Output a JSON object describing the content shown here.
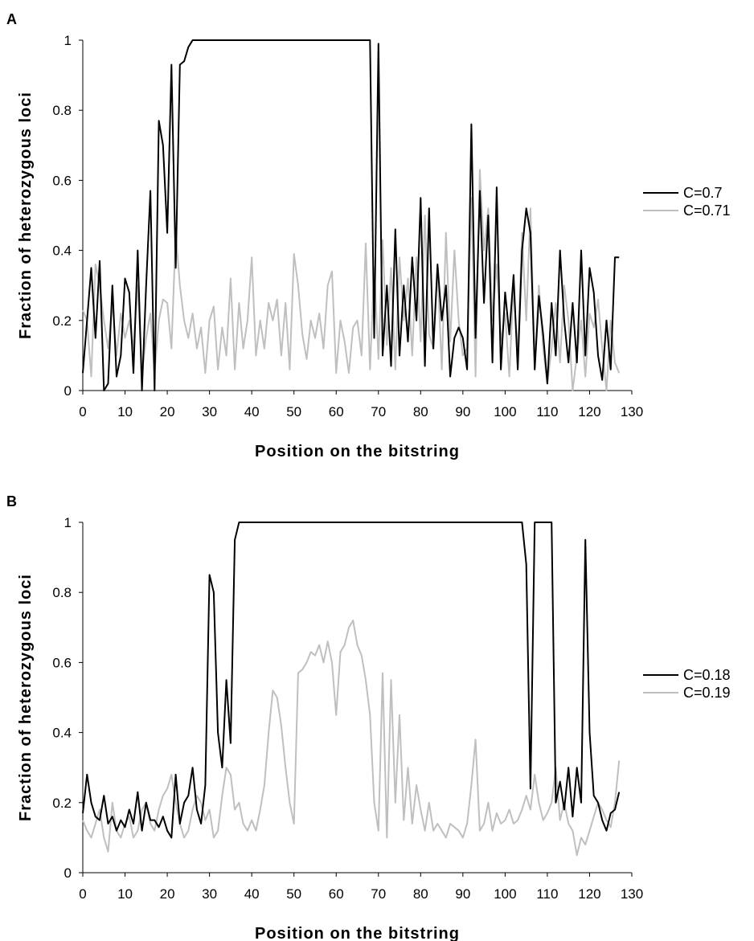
{
  "chart_data": [
    {
      "type": "line",
      "panel_label": "A",
      "title": "",
      "xlabel": "Position on the bitstring",
      "ylabel": "Fraction of heterozygous loci",
      "xlim": [
        0,
        130
      ],
      "ylim": [
        0,
        1
      ],
      "xticks": [
        "0",
        "10",
        "20",
        "30",
        "40",
        "50",
        "60",
        "70",
        "80",
        "90",
        "100",
        "110",
        "120",
        "130"
      ],
      "yticks": [
        "0",
        "0.2",
        "0.4",
        "0.6",
        "0.8",
        "1"
      ],
      "legend_position": "right",
      "grid": false,
      "series": [
        {
          "name": "C=0.7",
          "color": "#000000",
          "x": [
            0,
            1,
            2,
            3,
            4,
            5,
            6,
            7,
            8,
            9,
            10,
            11,
            12,
            13,
            14,
            15,
            16,
            17,
            18,
            19,
            20,
            21,
            22,
            23,
            24,
            25,
            26,
            27,
            30,
            35,
            40,
            45,
            50,
            55,
            60,
            65,
            68,
            69,
            70,
            71,
            72,
            73,
            74,
            75,
            76,
            77,
            78,
            79,
            80,
            81,
            82,
            83,
            84,
            85,
            86,
            87,
            88,
            89,
            90,
            91,
            92,
            93,
            94,
            95,
            96,
            97,
            98,
            99,
            100,
            101,
            102,
            103,
            104,
            105,
            106,
            107,
            108,
            109,
            110,
            111,
            112,
            113,
            114,
            115,
            116,
            117,
            118,
            119,
            120,
            121,
            122,
            123,
            124,
            125,
            126,
            127
          ],
          "y": [
            0.05,
            0.2,
            0.35,
            0.15,
            0.37,
            0.0,
            0.02,
            0.3,
            0.04,
            0.1,
            0.32,
            0.28,
            0.05,
            0.4,
            0.0,
            0.3,
            0.57,
            0.0,
            0.77,
            0.7,
            0.45,
            0.93,
            0.35,
            0.93,
            0.94,
            0.98,
            1.0,
            1.0,
            1.0,
            1.0,
            1.0,
            1.0,
            1.0,
            1.0,
            1.0,
            1.0,
            1.0,
            0.15,
            0.99,
            0.1,
            0.3,
            0.07,
            0.46,
            0.1,
            0.3,
            0.14,
            0.38,
            0.2,
            0.55,
            0.07,
            0.52,
            0.12,
            0.36,
            0.2,
            0.3,
            0.04,
            0.15,
            0.18,
            0.15,
            0.06,
            0.76,
            0.15,
            0.57,
            0.25,
            0.5,
            0.08,
            0.58,
            0.06,
            0.28,
            0.16,
            0.33,
            0.06,
            0.4,
            0.52,
            0.45,
            0.06,
            0.27,
            0.16,
            0.02,
            0.25,
            0.1,
            0.4,
            0.2,
            0.08,
            0.25,
            0.08,
            0.4,
            0.1,
            0.35,
            0.28,
            0.1,
            0.03,
            0.2,
            0.06,
            0.38,
            0.38
          ]
        },
        {
          "name": "C=0.71",
          "color": "#bfbfbf",
          "x": [
            0,
            1,
            2,
            3,
            4,
            5,
            6,
            7,
            8,
            9,
            10,
            11,
            12,
            13,
            14,
            15,
            16,
            17,
            18,
            19,
            20,
            21,
            22,
            23,
            24,
            25,
            26,
            27,
            28,
            29,
            30,
            31,
            32,
            33,
            34,
            35,
            36,
            37,
            38,
            39,
            40,
            41,
            42,
            43,
            44,
            45,
            46,
            47,
            48,
            49,
            50,
            51,
            52,
            53,
            54,
            55,
            56,
            57,
            58,
            59,
            60,
            61,
            62,
            63,
            64,
            65,
            66,
            67,
            68,
            69,
            70,
            71,
            72,
            73,
            74,
            75,
            76,
            77,
            78,
            79,
            80,
            81,
            82,
            83,
            84,
            85,
            86,
            87,
            88,
            89,
            90,
            91,
            92,
            93,
            94,
            95,
            96,
            97,
            98,
            99,
            100,
            101,
            102,
            103,
            104,
            105,
            106,
            107,
            108,
            109,
            110,
            111,
            112,
            113,
            114,
            115,
            116,
            117,
            118,
            119,
            120,
            121,
            122,
            123,
            124,
            125,
            126,
            127
          ],
          "y": [
            0.23,
            0.2,
            0.04,
            0.36,
            0.3,
            0.2,
            0.12,
            0.25,
            0.1,
            0.22,
            0.15,
            0.2,
            0.12,
            0.3,
            0.05,
            0.15,
            0.22,
            0.05,
            0.2,
            0.26,
            0.25,
            0.12,
            0.45,
            0.3,
            0.2,
            0.15,
            0.22,
            0.12,
            0.18,
            0.05,
            0.2,
            0.24,
            0.06,
            0.18,
            0.1,
            0.32,
            0.06,
            0.25,
            0.12,
            0.2,
            0.38,
            0.1,
            0.2,
            0.12,
            0.25,
            0.2,
            0.26,
            0.1,
            0.25,
            0.06,
            0.39,
            0.3,
            0.16,
            0.09,
            0.2,
            0.15,
            0.22,
            0.12,
            0.3,
            0.34,
            0.05,
            0.2,
            0.14,
            0.05,
            0.18,
            0.2,
            0.1,
            0.42,
            0.06,
            0.35,
            0.09,
            0.43,
            0.13,
            0.35,
            0.06,
            0.38,
            0.2,
            0.32,
            0.1,
            0.38,
            0.14,
            0.5,
            0.16,
            0.12,
            0.35,
            0.06,
            0.45,
            0.14,
            0.4,
            0.2,
            0.1,
            0.12,
            0.55,
            0.04,
            0.63,
            0.4,
            0.52,
            0.2,
            0.36,
            0.14,
            0.22,
            0.04,
            0.3,
            0.1,
            0.45,
            0.2,
            0.52,
            0.08,
            0.3,
            0.12,
            0.02,
            0.12,
            0.25,
            0.08,
            0.3,
            0.2,
            0.0,
            0.1,
            0.2,
            0.04,
            0.22,
            0.18,
            0.26,
            0.12,
            0.0,
            0.2,
            0.08,
            0.05
          ]
        }
      ]
    },
    {
      "type": "line",
      "panel_label": "B",
      "title": "",
      "xlabel": "Position on the bitstring",
      "ylabel": "Fraction of heterozygous loci",
      "xlim": [
        0,
        130
      ],
      "ylim": [
        0,
        1
      ],
      "xticks": [
        "0",
        "10",
        "20",
        "30",
        "40",
        "50",
        "60",
        "70",
        "80",
        "90",
        "100",
        "110",
        "120",
        "130"
      ],
      "yticks": [
        "0",
        "0.2",
        "0.4",
        "0.6",
        "0.8",
        "1"
      ],
      "legend_position": "right",
      "grid": false,
      "series": [
        {
          "name": "C=0.18",
          "color": "#000000",
          "x": [
            0,
            1,
            2,
            3,
            4,
            5,
            6,
            7,
            8,
            9,
            10,
            11,
            12,
            13,
            14,
            15,
            16,
            17,
            18,
            19,
            20,
            21,
            22,
            23,
            24,
            25,
            26,
            27,
            28,
            29,
            30,
            31,
            32,
            33,
            34,
            35,
            36,
            37,
            40,
            50,
            60,
            70,
            80,
            90,
            100,
            104,
            105,
            106,
            107,
            108,
            109,
            110,
            111,
            112,
            113,
            114,
            115,
            116,
            117,
            118,
            119,
            120,
            121,
            122,
            123,
            124,
            125,
            126,
            127
          ],
          "y": [
            0.17,
            0.28,
            0.2,
            0.16,
            0.15,
            0.22,
            0.14,
            0.16,
            0.12,
            0.15,
            0.13,
            0.18,
            0.14,
            0.23,
            0.12,
            0.2,
            0.15,
            0.15,
            0.13,
            0.16,
            0.12,
            0.1,
            0.28,
            0.14,
            0.2,
            0.22,
            0.3,
            0.18,
            0.14,
            0.25,
            0.85,
            0.8,
            0.4,
            0.3,
            0.55,
            0.37,
            0.95,
            1.0,
            1.0,
            1.0,
            1.0,
            1.0,
            1.0,
            1.0,
            1.0,
            1.0,
            0.88,
            0.24,
            1.0,
            1.0,
            1.0,
            1.0,
            1.0,
            0.2,
            0.26,
            0.18,
            0.3,
            0.16,
            0.3,
            0.2,
            0.95,
            0.4,
            0.22,
            0.2,
            0.15,
            0.12,
            0.17,
            0.18,
            0.23
          ]
        },
        {
          "name": "C=0.19",
          "color": "#bfbfbf",
          "x": [
            0,
            1,
            2,
            3,
            4,
            5,
            6,
            7,
            8,
            9,
            10,
            11,
            12,
            13,
            14,
            15,
            16,
            17,
            18,
            19,
            20,
            21,
            22,
            23,
            24,
            25,
            26,
            27,
            28,
            29,
            30,
            31,
            32,
            33,
            34,
            35,
            36,
            37,
            38,
            39,
            40,
            41,
            42,
            43,
            44,
            45,
            46,
            47,
            48,
            49,
            50,
            51,
            52,
            53,
            54,
            55,
            56,
            57,
            58,
            59,
            60,
            61,
            62,
            63,
            64,
            65,
            66,
            67,
            68,
            69,
            70,
            71,
            72,
            73,
            74,
            75,
            76,
            77,
            78,
            79,
            80,
            81,
            82,
            83,
            84,
            85,
            86,
            87,
            88,
            89,
            90,
            91,
            92,
            93,
            94,
            95,
            96,
            97,
            98,
            99,
            100,
            101,
            102,
            103,
            104,
            105,
            106,
            107,
            108,
            109,
            110,
            111,
            112,
            113,
            114,
            115,
            116,
            117,
            118,
            119,
            120,
            121,
            122,
            123,
            124,
            125,
            126,
            127
          ],
          "y": [
            0.15,
            0.12,
            0.1,
            0.14,
            0.18,
            0.1,
            0.06,
            0.2,
            0.12,
            0.1,
            0.14,
            0.16,
            0.1,
            0.12,
            0.18,
            0.2,
            0.14,
            0.12,
            0.18,
            0.22,
            0.24,
            0.28,
            0.2,
            0.14,
            0.1,
            0.12,
            0.18,
            0.22,
            0.2,
            0.15,
            0.18,
            0.1,
            0.12,
            0.22,
            0.3,
            0.28,
            0.18,
            0.2,
            0.14,
            0.12,
            0.15,
            0.12,
            0.18,
            0.25,
            0.4,
            0.52,
            0.5,
            0.42,
            0.3,
            0.2,
            0.14,
            0.57,
            0.58,
            0.6,
            0.63,
            0.62,
            0.65,
            0.6,
            0.66,
            0.6,
            0.45,
            0.63,
            0.65,
            0.7,
            0.72,
            0.65,
            0.62,
            0.55,
            0.45,
            0.2,
            0.12,
            0.57,
            0.1,
            0.55,
            0.2,
            0.45,
            0.15,
            0.3,
            0.14,
            0.25,
            0.18,
            0.12,
            0.2,
            0.12,
            0.14,
            0.12,
            0.1,
            0.14,
            0.13,
            0.12,
            0.1,
            0.14,
            0.25,
            0.38,
            0.12,
            0.14,
            0.2,
            0.12,
            0.17,
            0.14,
            0.15,
            0.18,
            0.14,
            0.15,
            0.18,
            0.22,
            0.18,
            0.28,
            0.2,
            0.15,
            0.17,
            0.2,
            0.3,
            0.15,
            0.2,
            0.14,
            0.12,
            0.05,
            0.1,
            0.08,
            0.12,
            0.16,
            0.2,
            0.18,
            0.15,
            0.13,
            0.2,
            0.32
          ]
        }
      ]
    }
  ]
}
